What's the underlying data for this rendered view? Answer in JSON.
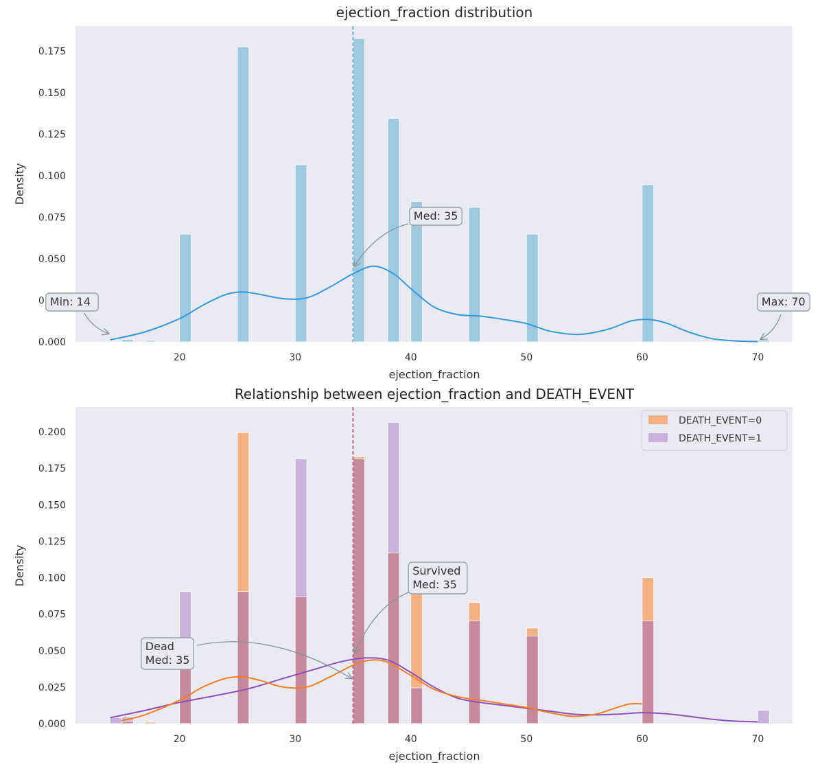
{
  "chart_data": [
    {
      "type": "bar",
      "title": "ejection_fraction distribution",
      "xlabel": "ejection_fraction",
      "ylabel": "Density",
      "xlim": [
        11,
        73
      ],
      "ylim": [
        0,
        0.19
      ],
      "grid": false,
      "xticks": [
        "20",
        "30",
        "40",
        "50",
        "60",
        "70"
      ],
      "yticks": [
        "0.000",
        "0.025",
        "0.050",
        "0.075",
        "0.100",
        "0.125",
        "0.150",
        "0.175"
      ],
      "bin_width": 1,
      "bars": [
        {
          "x": 15,
          "y": 0.0015
        },
        {
          "x": 17,
          "y": 0.0008
        },
        {
          "x": 20,
          "y": 0.0648
        },
        {
          "x": 25,
          "y": 0.1775
        },
        {
          "x": 30,
          "y": 0.1065
        },
        {
          "x": 35,
          "y": 0.1825
        },
        {
          "x": 38,
          "y": 0.1345
        },
        {
          "x": 40,
          "y": 0.0845
        },
        {
          "x": 45,
          "y": 0.081
        },
        {
          "x": 50,
          "y": 0.0648
        },
        {
          "x": 60,
          "y": 0.0945
        },
        {
          "x": 70,
          "y": 0.0012
        }
      ],
      "kde": {
        "x": [
          14,
          17,
          20,
          22,
          24,
          25.5,
          27,
          29,
          31,
          33,
          35,
          36.8,
          38.5,
          40,
          42,
          44,
          46,
          48,
          50,
          52,
          54.5,
          57,
          59,
          60.5,
          62,
          64,
          66,
          68,
          70
        ],
        "y": [
          0.0012,
          0.006,
          0.014,
          0.022,
          0.0285,
          0.03,
          0.0285,
          0.026,
          0.0265,
          0.033,
          0.041,
          0.0455,
          0.041,
          0.032,
          0.021,
          0.0165,
          0.0155,
          0.0135,
          0.011,
          0.0065,
          0.0045,
          0.0075,
          0.0125,
          0.0135,
          0.0115,
          0.006,
          0.002,
          0.0006,
          0.0002
        ]
      },
      "median_line": 35,
      "annotations": [
        {
          "text": "Min: 14",
          "x": 14,
          "y": 0.0
        },
        {
          "text": "Med: 35",
          "x": 35,
          "y": 0.043
        },
        {
          "text": "Max: 70",
          "x": 70,
          "y": 0.0
        }
      ],
      "colors": {
        "bar": "#9ecae1",
        "kde": "#3498db",
        "median": "#7ab3db",
        "axes_bg": "#eaeaf2"
      }
    },
    {
      "type": "bar",
      "title": "Relationship between ejection_fraction and DEATH_EVENT",
      "xlabel": "ejection_fraction",
      "ylabel": "Density",
      "xlim": [
        11,
        73
      ],
      "ylim": [
        0,
        0.217
      ],
      "grid": false,
      "legend_position": "top-right",
      "xticks": [
        "20",
        "30",
        "40",
        "50",
        "60",
        "70"
      ],
      "yticks": [
        "0.000",
        "0.025",
        "0.050",
        "0.075",
        "0.100",
        "0.125",
        "0.150",
        "0.175",
        "0.200"
      ],
      "bin_width": 1,
      "series": [
        {
          "name": "DEATH_EVENT=0",
          "color": "#f4b183",
          "bars": [
            {
              "x": 15,
              "y": 0.0015
            },
            {
              "x": 17,
              "y": 0.001
            },
            {
              "x": 20,
              "y": 0.058
            },
            {
              "x": 25,
              "y": 0.1995
            },
            {
              "x": 30,
              "y": 0.087
            },
            {
              "x": 35,
              "y": 0.183
            },
            {
              "x": 38,
              "y": 0.117
            },
            {
              "x": 40,
              "y": 0.0995
            },
            {
              "x": 45,
              "y": 0.083
            },
            {
              "x": 50,
              "y": 0.0655
            },
            {
              "x": 60,
              "y": 0.1
            },
            {
              "x": 70,
              "y": 0.0
            }
          ],
          "kde": {
            "x": [
              15,
              17,
              20,
              22,
              24,
              25.5,
              27,
              29,
              31,
              33,
              35,
              36.5,
              38,
              40,
              42,
              44,
              46,
              48,
              50,
              52,
              54,
              56,
              58,
              59,
              60
            ],
            "y": [
              0.002,
              0.006,
              0.016,
              0.025,
              0.031,
              0.032,
              0.0295,
              0.025,
              0.025,
              0.032,
              0.04,
              0.0435,
              0.042,
              0.033,
              0.0235,
              0.0185,
              0.016,
              0.0135,
              0.011,
              0.0075,
              0.005,
              0.0065,
              0.0115,
              0.0135,
              0.0135
            ]
          }
        },
        {
          "name": "DEATH_EVENT=1",
          "color": "#c9b3dd",
          "bars": [
            {
              "x": 14,
              "y": 0.004
            },
            {
              "x": 15,
              "y": 0.0045
            },
            {
              "x": 20,
              "y": 0.0905
            },
            {
              "x": 25,
              "y": 0.0905
            },
            {
              "x": 30,
              "y": 0.1815
            },
            {
              "x": 35,
              "y": 0.1815
            },
            {
              "x": 38,
              "y": 0.2065
            },
            {
              "x": 40,
              "y": 0.0245
            },
            {
              "x": 45,
              "y": 0.0705
            },
            {
              "x": 50,
              "y": 0.06
            },
            {
              "x": 60,
              "y": 0.0705
            },
            {
              "x": 70,
              "y": 0.009
            }
          ],
          "kde": {
            "x": [
              14,
              17,
              20,
              23,
              26,
              29,
              32,
              34,
              36,
              38,
              40,
              42,
              44,
              46,
              48,
              50,
              52,
              54,
              56,
              58,
              60,
              62,
              64,
              66,
              68,
              70
            ],
            "y": [
              0.004,
              0.009,
              0.0145,
              0.019,
              0.024,
              0.031,
              0.038,
              0.0425,
              0.045,
              0.0435,
              0.035,
              0.025,
              0.0175,
              0.0145,
              0.0125,
              0.0105,
              0.0085,
              0.0065,
              0.006,
              0.0065,
              0.0075,
              0.0068,
              0.005,
              0.003,
              0.0017,
              0.0012
            ]
          }
        }
      ],
      "overlap_color": "#c58b9c",
      "median_lines": [
        35,
        35
      ],
      "annotations": [
        {
          "text": "Survived\nMed: 35",
          "x": 35,
          "y": 0.051
        },
        {
          "text": "Dead\nMed: 35",
          "x": 35,
          "y": 0.03
        }
      ],
      "colors": {
        "kde0": "#f57f20",
        "kde1": "#8e4fb8",
        "median": "#c06d80",
        "axes_bg": "#eaeaf2"
      }
    }
  ]
}
